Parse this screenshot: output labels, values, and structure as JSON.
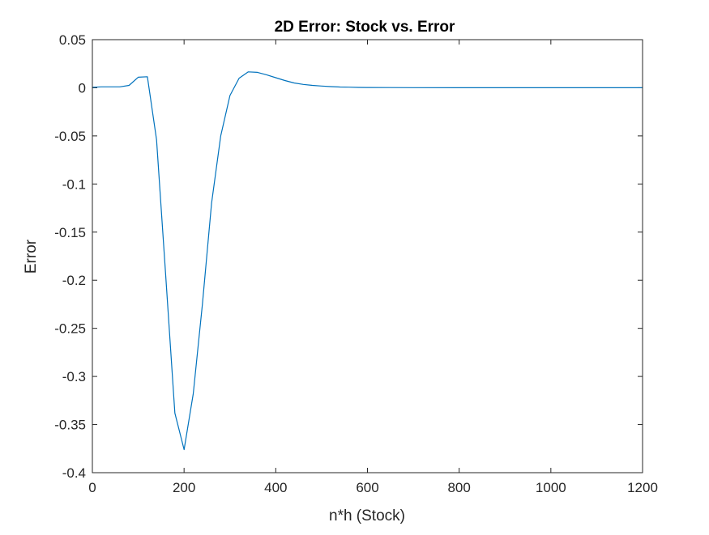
{
  "chart_data": {
    "type": "line",
    "title": "2D Error: Stock vs. Error",
    "xlabel": "n*h (Stock)",
    "ylabel": "Error",
    "xlim": [
      0,
      1200
    ],
    "ylim": [
      -0.4,
      0.05
    ],
    "xticks": [
      0,
      200,
      400,
      600,
      800,
      1000,
      1200
    ],
    "xtick_labels": [
      "0",
      "200",
      "400",
      "600",
      "800",
      "1000",
      "1200"
    ],
    "yticks": [
      0.05,
      0,
      -0.05,
      -0.1,
      -0.15,
      -0.2,
      -0.25,
      -0.3,
      -0.35,
      -0.4
    ],
    "ytick_labels": [
      "0.05",
      "0",
      "-0.05",
      "-0.1",
      "-0.15",
      "-0.2",
      "-0.25",
      "-0.3",
      "-0.35",
      "-0.4"
    ],
    "grid": false,
    "legend": "none",
    "series": [
      {
        "color": "#0072BD",
        "x": [
          0,
          20,
          40,
          60,
          80,
          100,
          120,
          140,
          160,
          180,
          200,
          220,
          240,
          260,
          280,
          300,
          320,
          340,
          360,
          380,
          400,
          420,
          440,
          460,
          480,
          500,
          520,
          540,
          560,
          580,
          600,
          650,
          700,
          800,
          900,
          1000,
          1100,
          1200
        ],
        "y": [
          0.0005,
          0.001,
          0.001,
          0.001,
          0.0025,
          0.011,
          0.0115,
          -0.054,
          -0.195,
          -0.338,
          -0.376,
          -0.318,
          -0.225,
          -0.12,
          -0.05,
          -0.008,
          0.01,
          0.0165,
          0.016,
          0.0135,
          0.0105,
          0.0075,
          0.005,
          0.0035,
          0.0025,
          0.0018,
          0.0012,
          0.0008,
          0.0006,
          0.0004,
          0.0003,
          0.0002,
          0.0001,
          0,
          0,
          0,
          0,
          0
        ]
      }
    ]
  }
}
